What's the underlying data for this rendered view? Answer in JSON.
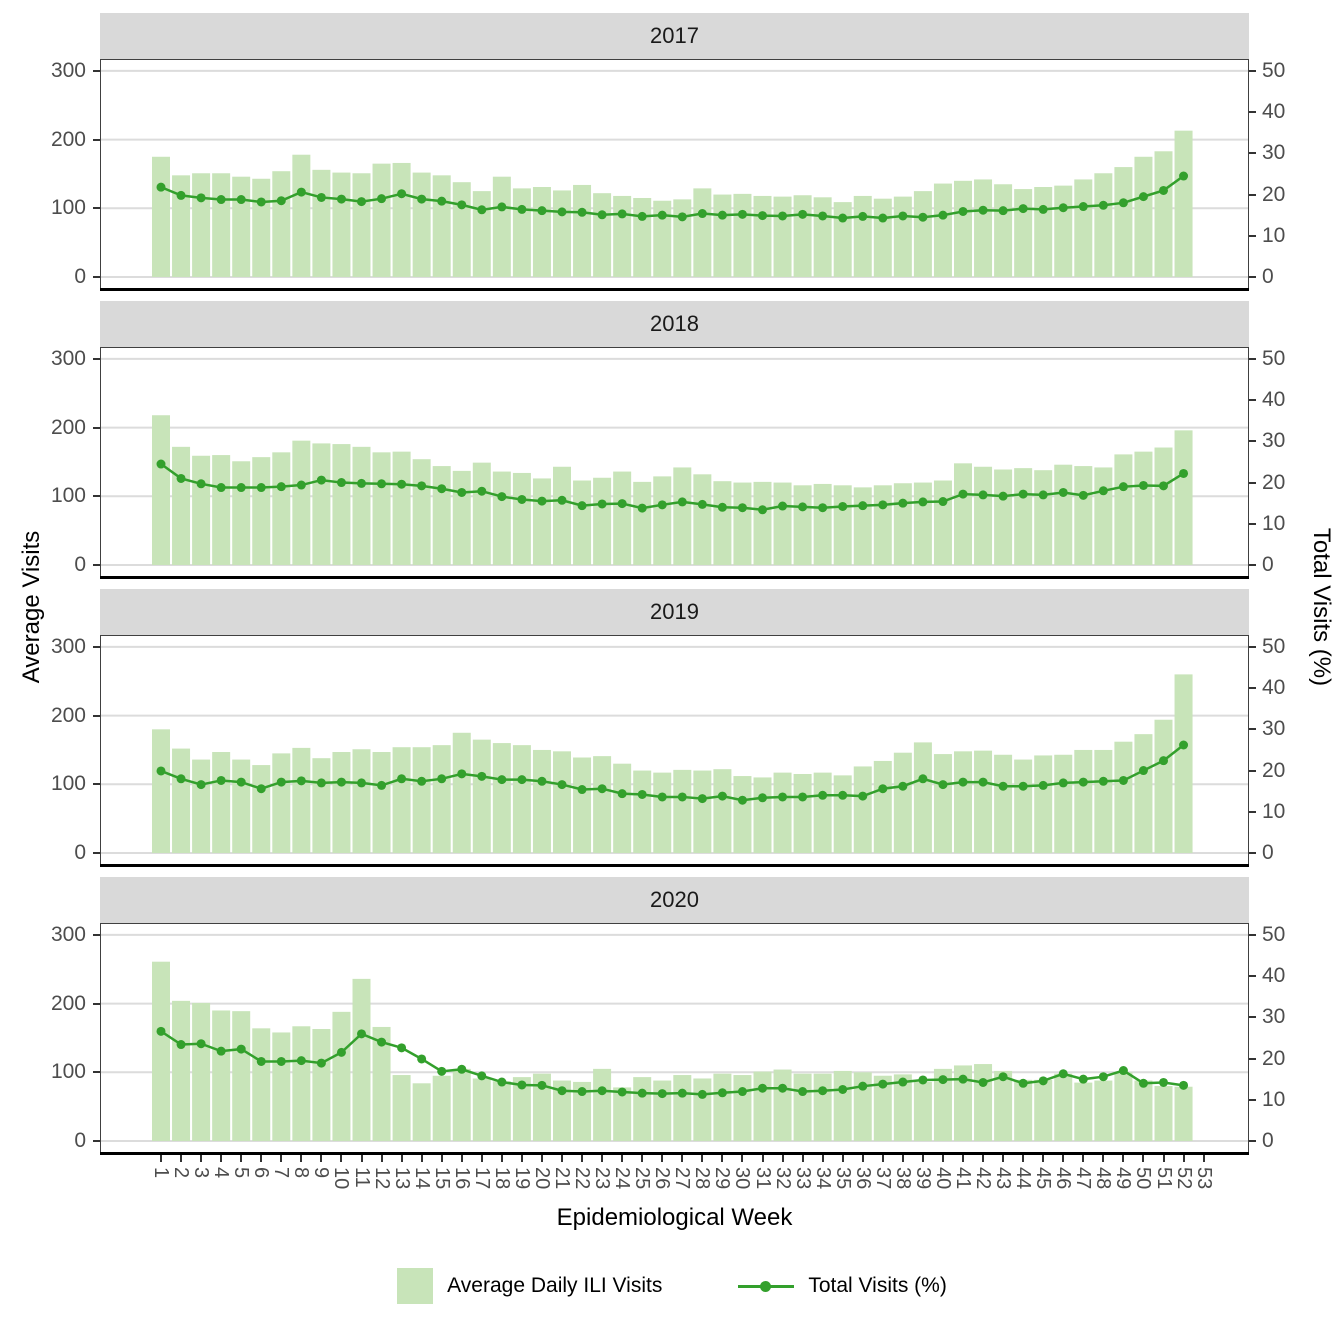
{
  "figure": {
    "strip_labels": [
      "2017",
      "2018",
      "2019",
      "2020"
    ],
    "x_axis": {
      "title": "Epidemiological Week",
      "ticks": [
        1,
        2,
        3,
        4,
        5,
        6,
        7,
        8,
        9,
        10,
        11,
        12,
        13,
        14,
        15,
        16,
        17,
        18,
        19,
        20,
        21,
        22,
        23,
        24,
        25,
        26,
        27,
        28,
        29,
        30,
        31,
        32,
        33,
        34,
        35,
        36,
        37,
        38,
        39,
        40,
        41,
        42,
        43,
        44,
        45,
        46,
        47,
        48,
        49,
        50,
        51,
        52,
        53
      ]
    },
    "y_left": {
      "title": "Average Visits",
      "ticks": [
        0,
        100,
        200,
        300
      ]
    },
    "y_right": {
      "title": "Total Visits (%)",
      "ticks": [
        0,
        10,
        20,
        30,
        40,
        50
      ]
    },
    "legend": [
      {
        "type": "fill",
        "label": "Average Daily ILI Visits"
      },
      {
        "type": "line",
        "label": "Total Visits (%)"
      }
    ],
    "colors": {
      "bar": "#c8e4b9",
      "line": "#33a02c",
      "strip_bg": "#d9d9d9",
      "grid": "#dcdcdc",
      "tick_text": "#4d4d4d",
      "panel_border": "#404040",
      "axis_line": "#000000"
    }
  },
  "chart_data": [
    {
      "type": "bar",
      "facet": "2017",
      "x": [
        1,
        2,
        3,
        4,
        5,
        6,
        7,
        8,
        9,
        10,
        11,
        12,
        13,
        14,
        15,
        16,
        17,
        18,
        19,
        20,
        21,
        22,
        23,
        24,
        25,
        26,
        27,
        28,
        29,
        30,
        31,
        32,
        33,
        34,
        35,
        36,
        37,
        38,
        39,
        40,
        41,
        42,
        43,
        44,
        45,
        46,
        47,
        48,
        49,
        50,
        51,
        52
      ],
      "series": [
        {
          "name": "Average Daily ILI Visits",
          "axis": "left",
          "ylim": [
            0,
            300
          ],
          "values": [
            175,
            148,
            151,
            151,
            146,
            143,
            154,
            178,
            156,
            152,
            151,
            165,
            166,
            152,
            148,
            138,
            125,
            146,
            129,
            131,
            126,
            134,
            122,
            118,
            115,
            111,
            113,
            129,
            120,
            121,
            118,
            117,
            119,
            116,
            109,
            118,
            114,
            117,
            125,
            136,
            140,
            142,
            135,
            128,
            131,
            133,
            142,
            151,
            160,
            175,
            183,
            213
          ]
        },
        {
          "name": "Total Visits (%)",
          "axis": "right",
          "ylim": [
            0,
            50
          ],
          "values": [
            21.8,
            19.8,
            19.2,
            18.8,
            18.8,
            18.2,
            18.5,
            20.6,
            19.3,
            18.9,
            18.3,
            19.0,
            20.2,
            18.9,
            18.4,
            17.5,
            16.3,
            17.0,
            16.4,
            16.1,
            15.8,
            15.7,
            15.1,
            15.3,
            14.7,
            15.0,
            14.6,
            15.4,
            15.0,
            15.2,
            14.9,
            14.8,
            15.2,
            14.8,
            14.3,
            14.7,
            14.3,
            14.8,
            14.5,
            15.0,
            15.9,
            16.2,
            16.1,
            16.6,
            16.4,
            16.8,
            17.1,
            17.4,
            18.0,
            19.5,
            21.0,
            24.5
          ]
        }
      ]
    },
    {
      "type": "bar",
      "facet": "2018",
      "x": [
        1,
        2,
        3,
        4,
        5,
        6,
        7,
        8,
        9,
        10,
        11,
        12,
        13,
        14,
        15,
        16,
        17,
        18,
        19,
        20,
        21,
        22,
        23,
        24,
        25,
        26,
        27,
        28,
        29,
        30,
        31,
        32,
        33,
        34,
        35,
        36,
        37,
        38,
        39,
        40,
        41,
        42,
        43,
        44,
        45,
        46,
        47,
        48,
        49,
        50,
        51,
        52
      ],
      "series": [
        {
          "name": "Average Daily ILI Visits",
          "axis": "left",
          "ylim": [
            0,
            300
          ],
          "values": [
            218,
            172,
            159,
            160,
            151,
            157,
            164,
            181,
            177,
            176,
            172,
            164,
            165,
            154,
            144,
            137,
            149,
            136,
            134,
            126,
            143,
            123,
            127,
            136,
            121,
            129,
            142,
            132,
            122,
            120,
            121,
            120,
            116,
            118,
            116,
            113,
            116,
            119,
            120,
            123,
            148,
            143,
            139,
            141,
            138,
            146,
            144,
            142,
            161,
            165,
            171,
            196
          ]
        },
        {
          "name": "Total Visits (%)",
          "axis": "right",
          "ylim": [
            0,
            50
          ],
          "values": [
            24.5,
            21.0,
            19.7,
            18.8,
            18.8,
            18.8,
            19.0,
            19.4,
            20.6,
            20.0,
            19.8,
            19.7,
            19.6,
            19.2,
            18.5,
            17.6,
            17.9,
            16.6,
            15.9,
            15.5,
            15.7,
            14.4,
            14.8,
            14.9,
            13.8,
            14.6,
            15.3,
            14.7,
            14.0,
            13.9,
            13.4,
            14.3,
            14.1,
            13.9,
            14.2,
            14.4,
            14.6,
            15.0,
            15.3,
            15.4,
            17.2,
            17.0,
            16.7,
            17.2,
            17.0,
            17.6,
            16.9,
            18.0,
            19.0,
            19.3,
            19.2,
            22.2
          ]
        }
      ]
    },
    {
      "type": "bar",
      "facet": "2019",
      "x": [
        1,
        2,
        3,
        4,
        5,
        6,
        7,
        8,
        9,
        10,
        11,
        12,
        13,
        14,
        15,
        16,
        17,
        18,
        19,
        20,
        21,
        22,
        23,
        24,
        25,
        26,
        27,
        28,
        29,
        30,
        31,
        32,
        33,
        34,
        35,
        36,
        37,
        38,
        39,
        40,
        41,
        42,
        43,
        44,
        45,
        46,
        47,
        48,
        49,
        50,
        51,
        52
      ],
      "series": [
        {
          "name": "Average Daily ILI Visits",
          "axis": "left",
          "ylim": [
            0,
            300
          ],
          "values": [
            180,
            152,
            136,
            147,
            136,
            128,
            145,
            153,
            138,
            147,
            151,
            147,
            154,
            154,
            157,
            175,
            165,
            160,
            157,
            150,
            148,
            139,
            141,
            130,
            120,
            117,
            121,
            120,
            122,
            112,
            110,
            117,
            115,
            117,
            113,
            126,
            134,
            146,
            161,
            144,
            148,
            149,
            143,
            136,
            142,
            143,
            150,
            150,
            162,
            173,
            194,
            260
          ]
        },
        {
          "name": "Total Visits (%)",
          "axis": "right",
          "ylim": [
            0,
            50
          ],
          "values": [
            19.9,
            18.0,
            16.6,
            17.6,
            17.2,
            15.6,
            17.2,
            17.5,
            17.0,
            17.2,
            17.0,
            16.4,
            18.0,
            17.4,
            18.0,
            19.2,
            18.6,
            17.8,
            17.8,
            17.4,
            16.6,
            15.4,
            15.6,
            14.4,
            14.2,
            13.6,
            13.6,
            13.2,
            13.8,
            12.8,
            13.4,
            13.6,
            13.6,
            14.0,
            14.0,
            13.8,
            15.6,
            16.2,
            18.0,
            16.6,
            17.2,
            17.2,
            16.2,
            16.2,
            16.4,
            17.0,
            17.2,
            17.4,
            17.6,
            20.0,
            22.4,
            26.2
          ]
        }
      ]
    },
    {
      "type": "bar",
      "facet": "2020",
      "x": [
        1,
        2,
        3,
        4,
        5,
        6,
        7,
        8,
        9,
        10,
        11,
        12,
        13,
        14,
        15,
        16,
        17,
        18,
        19,
        20,
        21,
        22,
        23,
        24,
        25,
        26,
        27,
        28,
        29,
        30,
        31,
        32,
        33,
        34,
        35,
        36,
        37,
        38,
        39,
        40,
        41,
        42,
        43,
        44,
        45,
        46,
        47,
        48,
        49,
        50,
        51,
        52
      ],
      "series": [
        {
          "name": "Average Daily ILI Visits",
          "axis": "left",
          "ylim": [
            0,
            300
          ],
          "values": [
            261,
            204,
            201,
            190,
            189,
            164,
            158,
            167,
            163,
            188,
            236,
            166,
            96,
            84,
            95,
            105,
            91,
            87,
            93,
            98,
            88,
            86,
            105,
            78,
            93,
            88,
            96,
            91,
            98,
            96,
            101,
            104,
            98,
            98,
            102,
            100,
            95,
            97,
            86,
            105,
            110,
            112,
            102,
            89,
            89,
            98,
            85,
            88,
            100,
            88,
            80,
            79
          ]
        },
        {
          "name": "Total Visits (%)",
          "axis": "right",
          "ylim": [
            0,
            50
          ],
          "values": [
            26.6,
            23.4,
            23.6,
            21.8,
            22.3,
            19.3,
            19.3,
            19.5,
            18.9,
            21.5,
            26.0,
            24.0,
            22.6,
            19.9,
            16.9,
            17.4,
            15.8,
            14.3,
            13.6,
            13.5,
            12.2,
            12.0,
            12.2,
            11.9,
            11.6,
            11.5,
            11.6,
            11.3,
            11.7,
            12.0,
            12.8,
            12.8,
            12.0,
            12.2,
            12.5,
            13.3,
            13.8,
            14.3,
            14.8,
            14.9,
            15.0,
            14.2,
            15.6,
            14.0,
            14.6,
            16.3,
            15.0,
            15.6,
            17.1,
            14.0,
            14.2,
            13.5
          ]
        }
      ]
    }
  ]
}
